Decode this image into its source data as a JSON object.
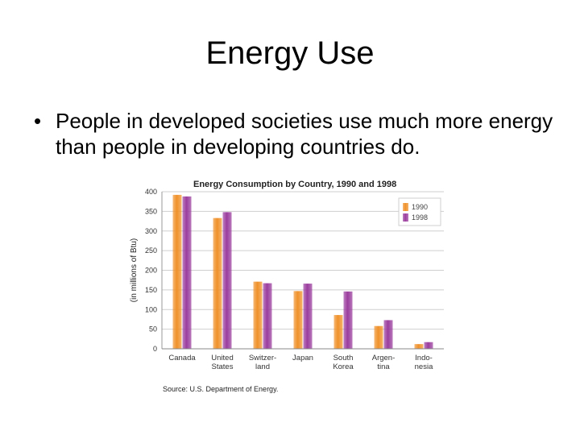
{
  "slide": {
    "title": "Energy Use",
    "bullet_symbol": "•",
    "bullet_text": "People in developed societies use much more energy than people in developing countries do."
  },
  "chart_data": {
    "type": "bar",
    "title": "Energy Consumption by Country, 1990 and 1998",
    "ylabel": "(in millions of Btu)",
    "xlabel": "",
    "ylim": [
      0,
      400
    ],
    "yticks": [
      0,
      50,
      100,
      150,
      200,
      250,
      300,
      350,
      400
    ],
    "grid": true,
    "legend_position": "top-right",
    "categories": [
      [
        "Canada"
      ],
      [
        "United",
        "States"
      ],
      [
        "Switzer-",
        "land"
      ],
      [
        "Japan"
      ],
      [
        "South",
        "Korea"
      ],
      [
        "Argen-",
        "tina"
      ],
      [
        "Indo-",
        "nesia"
      ]
    ],
    "series": [
      {
        "name": "1990",
        "values": [
          392,
          333,
          171,
          147,
          86,
          58,
          12
        ],
        "color": "#f0912a"
      },
      {
        "name": "1998",
        "values": [
          388,
          348,
          167,
          166,
          146,
          73,
          17
        ],
        "color": "#9b3d9e"
      }
    ],
    "source": "Source: U.S. Department of Energy."
  }
}
